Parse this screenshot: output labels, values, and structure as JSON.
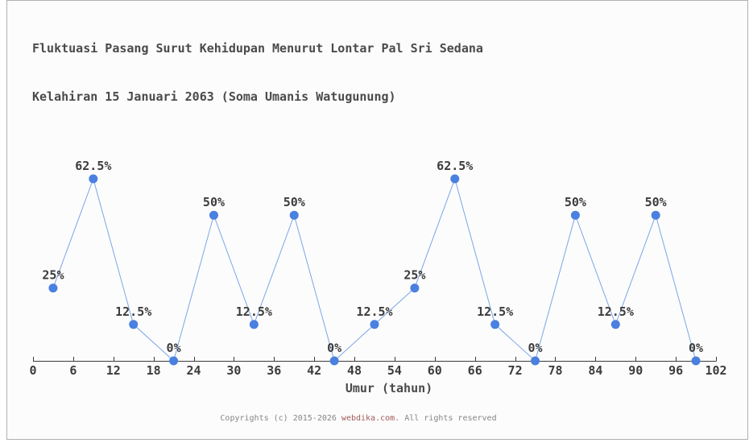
{
  "page": {
    "background": "#fcfcfc",
    "frame_border_color": "#b0b0b0"
  },
  "chart_data": {
    "type": "line",
    "title_lines": [
      "Fluktuasi Pasang Surut Kehidupan Menurut Lontar Pal Sri Sedana",
      "Kelahiran 15 Januari 2063 (Soma Umanis Watugunung)"
    ],
    "xlabel": "Umur (tahun)",
    "ylabel": "",
    "x": [
      3,
      9,
      15,
      21,
      27,
      33,
      39,
      45,
      51,
      57,
      63,
      69,
      75,
      81,
      87,
      93,
      99
    ],
    "values": [
      25,
      62.5,
      12.5,
      0,
      50,
      12.5,
      50,
      0,
      12.5,
      25,
      62.5,
      12.5,
      0,
      50,
      12.5,
      50,
      0
    ],
    "point_labels": [
      "25%",
      "62.5%",
      "12.5%",
      "0%",
      "50%",
      "12.5%",
      "50%",
      "0%",
      "12.5%",
      "25%",
      "62.5%",
      "12.5%",
      "0%",
      "50%",
      "12.5%",
      "50%",
      "0%"
    ],
    "x_ticks": [
      0,
      6,
      12,
      18,
      24,
      30,
      36,
      42,
      48,
      54,
      60,
      66,
      72,
      78,
      84,
      90,
      96,
      102
    ],
    "xlim": [
      0,
      102
    ],
    "ylim": [
      0,
      100
    ],
    "grid": false,
    "legend": false,
    "colors": {
      "line": "#7aa5e8",
      "marker": "#4a80e0",
      "axis": "#3c3c3c",
      "label_text": "#3c3c3c"
    }
  },
  "footer": {
    "prefix": "Copyrights (c) 2015-2026 ",
    "link": "webdika.com",
    "suffix": ". All rights reserved"
  }
}
